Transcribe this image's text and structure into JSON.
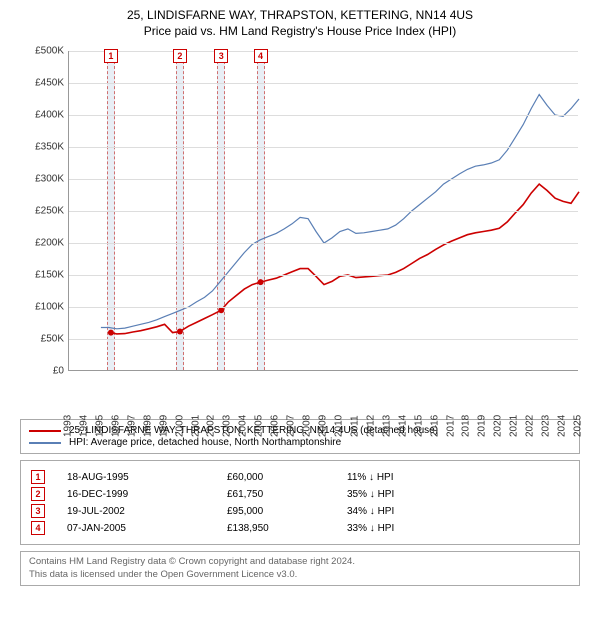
{
  "title": {
    "line1": "25, LINDISFARNE WAY, THRAPSTON, KETTERING, NN14 4US",
    "line2": "Price paid vs. HM Land Registry's House Price Index (HPI)"
  },
  "chart": {
    "type": "line",
    "background_color": "#ffffff",
    "grid_color": "#dddddd",
    "axis_color": "#999999",
    "ylim": [
      0,
      500000
    ],
    "ytick_step": 50000,
    "yticks": [
      "£0",
      "£50K",
      "£100K",
      "£150K",
      "£200K",
      "£250K",
      "£300K",
      "£350K",
      "£400K",
      "£450K",
      "£500K"
    ],
    "x_years": [
      1993,
      1994,
      1995,
      1996,
      1997,
      1998,
      1999,
      2000,
      2001,
      2002,
      2003,
      2004,
      2005,
      2006,
      2007,
      2008,
      2009,
      2010,
      2011,
      2012,
      2013,
      2014,
      2015,
      2016,
      2017,
      2018,
      2019,
      2020,
      2021,
      2022,
      2023,
      2024,
      2025
    ],
    "band_color": "#e8eef5",
    "band_dash_color": "#d07070",
    "marker_border_color": "#cc0000",
    "series": {
      "hpi": {
        "color": "#5a7fb5",
        "width": 1.2,
        "points": [
          [
            1995.0,
            68000
          ],
          [
            1995.5,
            68000
          ],
          [
            1996.0,
            66000
          ],
          [
            1996.5,
            67000
          ],
          [
            1997.0,
            70000
          ],
          [
            1997.5,
            73000
          ],
          [
            1998.0,
            76000
          ],
          [
            1998.5,
            80000
          ],
          [
            1999.0,
            85000
          ],
          [
            1999.5,
            90000
          ],
          [
            2000.0,
            95000
          ],
          [
            2000.5,
            100000
          ],
          [
            2001.0,
            108000
          ],
          [
            2001.5,
            115000
          ],
          [
            2002.0,
            125000
          ],
          [
            2002.5,
            140000
          ],
          [
            2003.0,
            155000
          ],
          [
            2003.5,
            170000
          ],
          [
            2004.0,
            185000
          ],
          [
            2004.5,
            198000
          ],
          [
            2005.0,
            205000
          ],
          [
            2005.5,
            210000
          ],
          [
            2006.0,
            215000
          ],
          [
            2006.5,
            222000
          ],
          [
            2007.0,
            230000
          ],
          [
            2007.5,
            240000
          ],
          [
            2008.0,
            238000
          ],
          [
            2008.5,
            218000
          ],
          [
            2009.0,
            200000
          ],
          [
            2009.5,
            208000
          ],
          [
            2010.0,
            218000
          ],
          [
            2010.5,
            222000
          ],
          [
            2011.0,
            215000
          ],
          [
            2011.5,
            216000
          ],
          [
            2012.0,
            218000
          ],
          [
            2012.5,
            220000
          ],
          [
            2013.0,
            222000
          ],
          [
            2013.5,
            228000
          ],
          [
            2014.0,
            238000
          ],
          [
            2014.5,
            250000
          ],
          [
            2015.0,
            260000
          ],
          [
            2015.5,
            270000
          ],
          [
            2016.0,
            280000
          ],
          [
            2016.5,
            292000
          ],
          [
            2017.0,
            300000
          ],
          [
            2017.5,
            308000
          ],
          [
            2018.0,
            315000
          ],
          [
            2018.5,
            320000
          ],
          [
            2019.0,
            322000
          ],
          [
            2019.5,
            325000
          ],
          [
            2020.0,
            330000
          ],
          [
            2020.5,
            345000
          ],
          [
            2021.0,
            365000
          ],
          [
            2021.5,
            385000
          ],
          [
            2022.0,
            410000
          ],
          [
            2022.5,
            432000
          ],
          [
            2023.0,
            415000
          ],
          [
            2023.5,
            400000
          ],
          [
            2024.0,
            398000
          ],
          [
            2024.5,
            410000
          ],
          [
            2025.0,
            425000
          ]
        ]
      },
      "property": {
        "color": "#cc0000",
        "width": 1.6,
        "points": [
          [
            1995.6,
            60000
          ],
          [
            1996.0,
            58000
          ],
          [
            1996.5,
            58500
          ],
          [
            1997.0,
            61000
          ],
          [
            1997.5,
            63000
          ],
          [
            1998.0,
            66000
          ],
          [
            1998.5,
            69000
          ],
          [
            1999.0,
            73000
          ],
          [
            1999.5,
            60000
          ],
          [
            1999.95,
            61750
          ],
          [
            2000.5,
            70000
          ],
          [
            2001.0,
            76000
          ],
          [
            2001.5,
            82000
          ],
          [
            2002.0,
            88000
          ],
          [
            2002.55,
            95000
          ],
          [
            2003.0,
            108000
          ],
          [
            2003.5,
            118000
          ],
          [
            2004.0,
            128000
          ],
          [
            2004.5,
            135000
          ],
          [
            2005.02,
            138950
          ],
          [
            2005.5,
            142000
          ],
          [
            2006.0,
            145000
          ],
          [
            2006.5,
            150000
          ],
          [
            2007.0,
            155000
          ],
          [
            2007.5,
            160000
          ],
          [
            2008.0,
            160000
          ],
          [
            2008.5,
            148000
          ],
          [
            2009.0,
            135000
          ],
          [
            2009.5,
            140000
          ],
          [
            2010.0,
            148000
          ],
          [
            2010.5,
            150000
          ],
          [
            2011.0,
            146000
          ],
          [
            2011.5,
            147000
          ],
          [
            2012.0,
            148000
          ],
          [
            2012.5,
            149000
          ],
          [
            2013.0,
            150000
          ],
          [
            2013.5,
            154000
          ],
          [
            2014.0,
            160000
          ],
          [
            2014.5,
            168000
          ],
          [
            2015.0,
            176000
          ],
          [
            2015.5,
            182000
          ],
          [
            2016.0,
            190000
          ],
          [
            2016.5,
            197000
          ],
          [
            2017.0,
            203000
          ],
          [
            2017.5,
            208000
          ],
          [
            2018.0,
            213000
          ],
          [
            2018.5,
            216000
          ],
          [
            2019.0,
            218000
          ],
          [
            2019.5,
            220000
          ],
          [
            2020.0,
            223000
          ],
          [
            2020.5,
            233000
          ],
          [
            2021.0,
            247000
          ],
          [
            2021.5,
            260000
          ],
          [
            2022.0,
            278000
          ],
          [
            2022.5,
            292000
          ],
          [
            2023.0,
            282000
          ],
          [
            2023.5,
            270000
          ],
          [
            2024.0,
            265000
          ],
          [
            2024.5,
            262000
          ],
          [
            2025.0,
            280000
          ]
        ]
      }
    },
    "sale_markers": [
      {
        "n": "1",
        "year": 1995.63,
        "price": 60000
      },
      {
        "n": "2",
        "year": 1999.96,
        "price": 61750
      },
      {
        "n": "3",
        "year": 2002.55,
        "price": 95000
      },
      {
        "n": "4",
        "year": 2005.02,
        "price": 138950
      }
    ],
    "bands": [
      {
        "start": 1995.4,
        "end": 1995.9
      },
      {
        "start": 1999.7,
        "end": 2000.2
      },
      {
        "start": 2002.3,
        "end": 2002.8
      },
      {
        "start": 2004.8,
        "end": 2005.3
      }
    ]
  },
  "legend": {
    "rows": [
      {
        "color": "#cc0000",
        "label": "25, LINDISFARNE WAY, THRAPSTON, KETTERING, NN14 4US (detached house)"
      },
      {
        "color": "#5a7fb5",
        "label": "HPI: Average price, detached house, North Northamptonshire"
      }
    ]
  },
  "sales": [
    {
      "n": "1",
      "date": "18-AUG-1995",
      "price": "£60,000",
      "delta": "11% ↓ HPI"
    },
    {
      "n": "2",
      "date": "16-DEC-1999",
      "price": "£61,750",
      "delta": "35% ↓ HPI"
    },
    {
      "n": "3",
      "date": "19-JUL-2002",
      "price": "£95,000",
      "delta": "34% ↓ HPI"
    },
    {
      "n": "4",
      "date": "07-JAN-2005",
      "price": "£138,950",
      "delta": "33% ↓ HPI"
    }
  ],
  "footer": {
    "line1": "Contains HM Land Registry data © Crown copyright and database right 2024.",
    "line2": "This data is licensed under the Open Government Licence v3.0."
  }
}
